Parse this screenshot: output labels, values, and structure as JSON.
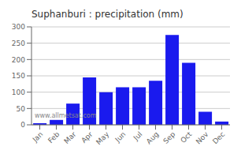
{
  "chart_data": {
    "type": "bar",
    "title": "Suphanburi : precipitation (mm)",
    "categories": [
      "Jan",
      "Feb",
      "Mar",
      "Apr",
      "May",
      "Jun",
      "Jul",
      "Aug",
      "Sep",
      "Oct",
      "Nov",
      "Dec"
    ],
    "values": [
      5,
      15,
      65,
      145,
      100,
      115,
      115,
      135,
      275,
      190,
      40,
      10
    ],
    "color": "#1a1aee",
    "ylim": [
      0,
      300
    ],
    "yticks": [
      0,
      50,
      100,
      150,
      200,
      250,
      300
    ],
    "grid": true,
    "annotations": [
      "www.allmetsat.com"
    ]
  }
}
